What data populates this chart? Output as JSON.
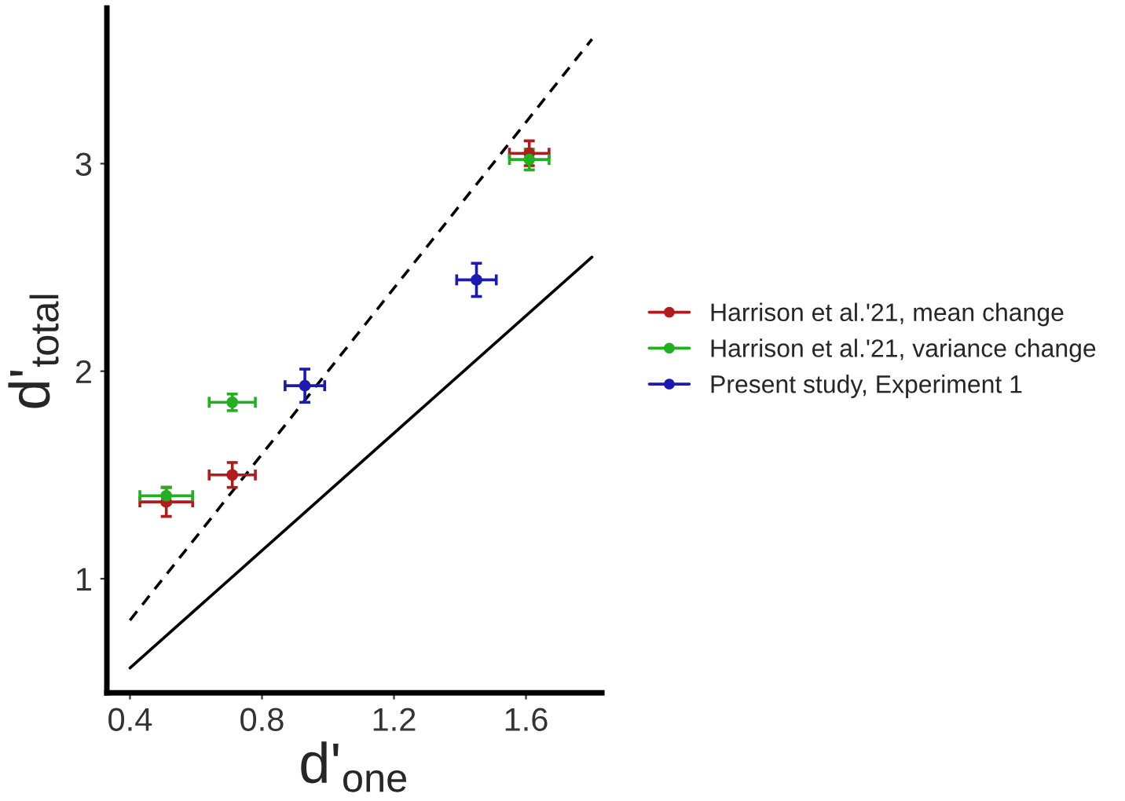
{
  "chart_data": {
    "type": "scatter",
    "xlabel": "d'$_{one}$",
    "ylabel": "d'$_{total}$",
    "xlim": [
      0.33,
      1.83
    ],
    "ylim": [
      0.45,
      3.75
    ],
    "xticks": [
      0.4,
      0.8,
      1.2,
      1.6
    ],
    "yticks": [
      1,
      2,
      3
    ],
    "grid": false,
    "legend": "right",
    "marker": "circle",
    "series": [
      {
        "type": "line",
        "color": "#000000",
        "line_style": "dashed",
        "marker": "none",
        "x": [
          0.4,
          1.8
        ],
        "values": [
          0.8,
          3.6
        ]
      },
      {
        "type": "line",
        "color": "#000000",
        "line_style": "solid",
        "marker": "none",
        "x": [
          0.4,
          1.8
        ],
        "values": [
          0.57,
          2.55
        ]
      },
      {
        "name": "Harrison et al.'21, mean change",
        "color": "#b01c1c",
        "x": [
          0.51,
          0.71,
          1.61
        ],
        "values": [
          1.37,
          1.5,
          3.05
        ],
        "errors": [
          0.07,
          0.06,
          0.06
        ],
        "xerrors": [
          0.08,
          0.07,
          0.06
        ]
      },
      {
        "name": "Harrison et al.'21, variance change",
        "color": "#22b022",
        "x": [
          0.51,
          0.71,
          1.61
        ],
        "values": [
          1.4,
          1.85,
          3.02
        ],
        "errors": [
          0.04,
          0.04,
          0.05
        ],
        "xerrors": [
          0.08,
          0.07,
          0.06
        ]
      },
      {
        "name": "Present study, Experiment 1",
        "color": "#1a1ab4",
        "x": [
          0.93,
          1.45
        ],
        "values": [
          1.93,
          2.44
        ],
        "errors": [
          0.08,
          0.08
        ],
        "xerrors": [
          0.06,
          0.06
        ]
      }
    ]
  }
}
